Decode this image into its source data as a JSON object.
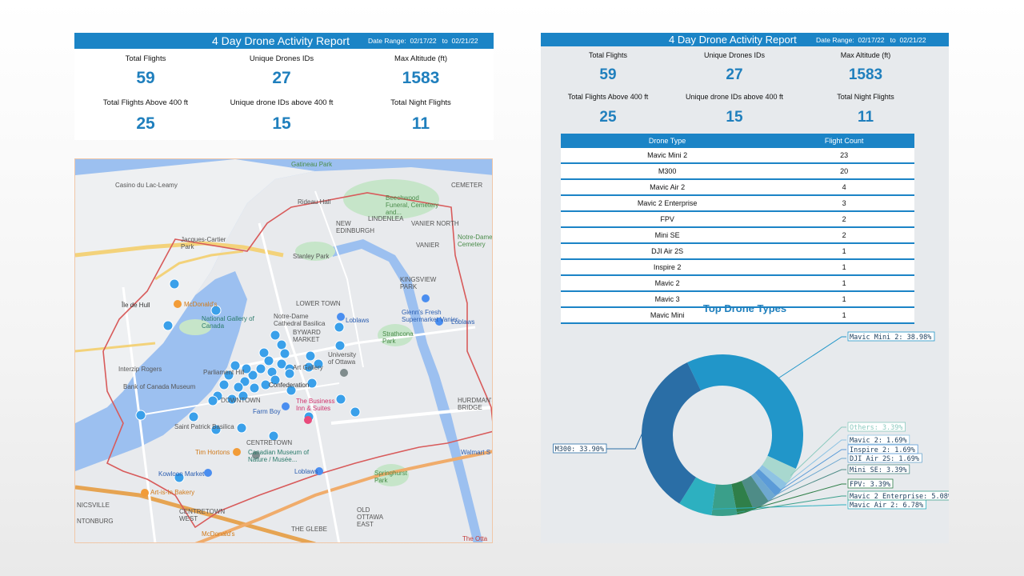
{
  "report": {
    "title": "4 Day Drone Activity Report",
    "date_range_label": "Date Range:",
    "date_from": "02/17/22",
    "to_label": "to",
    "date_to": "02/21/22",
    "stats": {
      "total_flights": {
        "label": "Total Flights",
        "value": "59"
      },
      "unique_ids": {
        "label": "Unique Drones IDs",
        "value": "27"
      },
      "max_altitude": {
        "label": "Max Altitude (ft)",
        "value": "1583"
      },
      "flights_above_400": {
        "label": "Total Flights Above 400 ft",
        "value": "25"
      },
      "unique_above_400": {
        "label": "Unique drone IDs above 400 ft",
        "value": "15"
      },
      "night_flights": {
        "label": "Total Night Flights",
        "value": "11"
      }
    }
  },
  "table": {
    "headers": [
      "Drone Type",
      "Flight Count"
    ],
    "rows": [
      [
        "Mavic Mini 2",
        "23"
      ],
      [
        "M300",
        "20"
      ],
      [
        "Mavic Air 2",
        "4"
      ],
      [
        "Mavic 2 Enterprise",
        "3"
      ],
      [
        "FPV",
        "2"
      ],
      [
        "Mini SE",
        "2"
      ],
      [
        "DJI Air 2S",
        "1"
      ],
      [
        "Inspire 2",
        "1"
      ],
      [
        "Mavic 2",
        "1"
      ],
      [
        "Mavic 3",
        "1"
      ],
      [
        "Mavic Mini",
        "1"
      ]
    ]
  },
  "map": {
    "labels": {
      "casino": "Casino du Lac-Leamy",
      "jacques_cartier": "Jacques-Cartier Park",
      "gatineau_park": "Gatineau Park",
      "rideau_hall": "Rideau Hall",
      "new_edinburgh": "NEW EDINBURGH",
      "lindenlea": "LINDENLEA",
      "beechwood": "Beechwood Funeral, Cemetery and...",
      "cemetery": "CEMETER",
      "vanier_north": "VANIER NORTH",
      "stanley_park": "Stanley Park",
      "notre_dame_cem": "Notre-Dame Cemetery",
      "vanier": "VANIER",
      "kingsview": "KINGSVIEW PARK",
      "ile_de_hull": "Île de Hull",
      "mcdonalds1": "McDonald's",
      "lower_town": "LOWER TOWN",
      "national_gallery": "National Gallery of Canada",
      "notre_dame_basilica": "Notre-Dame Cathedral Basilica",
      "loblaws1": "Loblaws",
      "fresh_market": "Glenn's Fresh Supermarket Vanier",
      "loblaws2": "Loblaws",
      "byward": "BYWARD MARKET",
      "strathcona": "Strathcona Park",
      "university": "University of Ottawa",
      "interzip": "Interzip Rogers",
      "parliament": "Parliament Hill",
      "art_gallery": "Art Gallery",
      "confederation": "Confederation",
      "bank_canada": "Bank of Canada Museum",
      "downtown": "DOWNTOWN",
      "business_inn": "The Business Inn & Suites",
      "hurdmans": "HURDMAN'S BRIDGE",
      "farm_boy": "Farm Boy",
      "st_patrick": "Saint Patrick Basilica",
      "centretown": "CENTRETOWN",
      "tim_hortons": "Tim Hortons",
      "museum_nature": "Canadian Museum of Nature / Musée...",
      "walmart": "Walmart S",
      "kowloon": "Kowloon Market",
      "loblaws3": "Loblaws",
      "springhurst": "Springhurst Park",
      "artisan": "Art-is-In Bakery",
      "centretown_west": "CENTRETOWN WEST",
      "old_ottawa_east": "OLD OTTAWA EAST",
      "nicsville": "NICSVILLE",
      "the_glebe": "THE GLEBE",
      "mcdonalds2": "McDonald's",
      "the_otta": "The Otta",
      "tonburg": "NTONBURG"
    }
  },
  "chart_data": {
    "type": "pie",
    "title": "Top Drone Types",
    "donut": true,
    "slices": [
      {
        "label": "Mavic Mini 2",
        "value": 38.98,
        "text": "Mavic Mini 2: 38.98%",
        "color": "#2196c9"
      },
      {
        "label": "M300",
        "value": 33.9,
        "text": "M300: 33.90%",
        "color": "#2a6ea6"
      },
      {
        "label": "Mavic Air 2",
        "value": 6.78,
        "text": "Mavic Air 2: 6.78%",
        "color": "#2db0c0"
      },
      {
        "label": "Mavic 2 Enterprise",
        "value": 5.08,
        "text": "Mavic 2 Enterprise: 5.08%",
        "color": "#3a9f8a"
      },
      {
        "label": "FPV",
        "value": 3.39,
        "text": "FPV: 3.39%",
        "color": "#2f7f49"
      },
      {
        "label": "Mini SE",
        "value": 3.39,
        "text": "Mini SE: 3.39%",
        "color": "#4e8c87"
      },
      {
        "label": "DJI Air 2S",
        "value": 1.69,
        "text": "DJI Air 2S: 1.69%",
        "color": "#6ea8d0"
      },
      {
        "label": "Inspire 2",
        "value": 1.69,
        "text": "Inspire 2: 1.69%",
        "color": "#5b9bd8"
      },
      {
        "label": "Mavic 2",
        "value": 1.69,
        "text": "Mavic 2: 1.69%",
        "color": "#8ec3e3"
      },
      {
        "label": "Others",
        "value": 3.39,
        "text": "Others: 3.39%",
        "color": "#a8d8cf"
      }
    ]
  }
}
